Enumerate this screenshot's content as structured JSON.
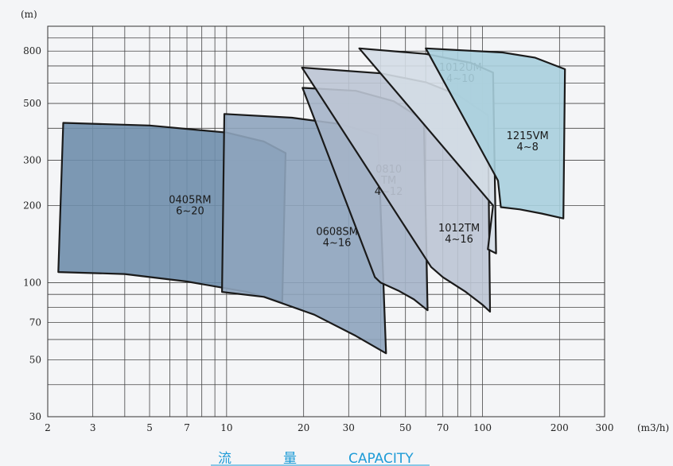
{
  "chart_data": {
    "type": "area",
    "title": "",
    "xlabel_cn_1": "流",
    "xlabel_cn_2": "量",
    "xlabel_en": "CAPACITY",
    "x_unit": "(m3/h)",
    "y_unit": "(m)",
    "x_scale": "log",
    "y_scale": "log",
    "xlim": [
      2,
      300
    ],
    "ylim": [
      30,
      1000
    ],
    "grid": true,
    "x_ticks": [
      2,
      3,
      5,
      7,
      10,
      20,
      30,
      50,
      70,
      100,
      200,
      300
    ],
    "y_ticks": [
      30,
      50,
      70,
      100,
      200,
      300,
      500,
      800
    ],
    "x_grid": [
      2,
      3,
      4,
      5,
      6,
      7,
      8,
      9,
      10,
      20,
      30,
      40,
      50,
      60,
      70,
      80,
      90,
      100,
      200,
      300
    ],
    "y_grid": [
      30,
      40,
      50,
      60,
      70,
      80,
      90,
      100,
      200,
      300,
      400,
      500,
      600,
      700,
      800,
      900,
      1000
    ],
    "series": [
      {
        "name": "0405RM",
        "label_lines": [
          "0405RM",
          "6~20"
        ],
        "color": "#6f8eab",
        "label_at": [
          7.2,
          200
        ],
        "boundary": [
          [
            2.3,
            420
          ],
          [
            5,
            410
          ],
          [
            10,
            385
          ],
          [
            14,
            355
          ],
          [
            17,
            320
          ],
          [
            16.5,
            84
          ],
          [
            12,
            92
          ],
          [
            7,
            101
          ],
          [
            4,
            108
          ],
          [
            2.2,
            110
          ]
        ]
      },
      {
        "name": "0608SM",
        "label_lines": [
          "0608SM",
          "4~16"
        ],
        "color": "#8ea4bc",
        "label_at": [
          27,
          150
        ],
        "boundary": [
          [
            9.8,
            455
          ],
          [
            18,
            440
          ],
          [
            28,
            415
          ],
          [
            39,
            375
          ],
          [
            42,
            53
          ],
          [
            32,
            62
          ],
          [
            22,
            75
          ],
          [
            14,
            88
          ],
          [
            9.6,
            92
          ]
        ]
      },
      {
        "name": "0810 TM",
        "label_lines": [
          "0810",
          "TM",
          "4~12"
        ],
        "color": "#a5b4c8",
        "label_at": [
          43,
          250
        ],
        "boundary": [
          [
            19.8,
            575
          ],
          [
            32,
            560
          ],
          [
            45,
            510
          ],
          [
            59,
            430
          ],
          [
            61,
            78
          ],
          [
            54,
            86
          ],
          [
            47,
            93
          ],
          [
            40,
            100
          ],
          [
            38,
            105
          ]
        ]
      },
      {
        "name": "1012TM",
        "label_lines": [
          "1012TM",
          "4~16"
        ],
        "color": "#bcc5d4",
        "label_at": [
          81,
          155
        ],
        "boundary": [
          [
            19.7,
            690
          ],
          [
            40,
            655
          ],
          [
            60,
            605
          ],
          [
            80,
            540
          ],
          [
            105,
            450
          ],
          [
            107,
            77
          ],
          [
            100,
            82
          ],
          [
            86,
            92
          ],
          [
            70,
            105
          ],
          [
            63,
            115
          ]
        ]
      },
      {
        "name": "1012UM",
        "label_lines": [
          "1012UM",
          "4~10"
        ],
        "color": "#d4dde6",
        "label_at": [
          82,
          655
        ],
        "boundary": [
          [
            33,
            820
          ],
          [
            60,
            780
          ],
          [
            90,
            720
          ],
          [
            110,
            660
          ],
          [
            113,
            130
          ],
          [
            105,
            135
          ],
          [
            110,
            200
          ]
        ]
      },
      {
        "name": "1215VM",
        "label_lines": [
          "1215VM",
          "4~8"
        ],
        "color": "#a9cfdd",
        "label_at": [
          150,
          355
        ],
        "boundary": [
          [
            60,
            820
          ],
          [
            120,
            790
          ],
          [
            160,
            755
          ],
          [
            210,
            680
          ],
          [
            207,
            178
          ],
          [
            170,
            186
          ],
          [
            140,
            193
          ],
          [
            118,
            197
          ],
          [
            115,
            250
          ]
        ]
      }
    ]
  }
}
